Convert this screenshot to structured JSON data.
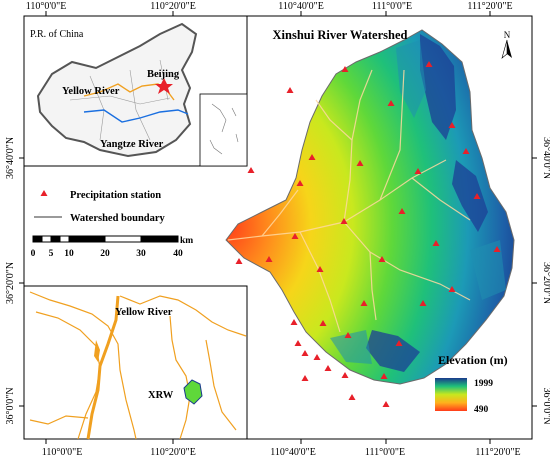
{
  "map": {
    "title": "Xinshui River Watershed",
    "north_arrow": "N",
    "top_longitudes": [
      "110°0'0\"E",
      "110°20'0\"E",
      "110°40'0\"E",
      "111°0'0\"E",
      "111°20'0\"E"
    ],
    "bottom_longitudes": [
      "110°0'0\"E",
      "110°20'0\"E",
      "110°40'0\"E",
      "111°0'0\"E",
      "111°20'0\"E"
    ],
    "left_latitudes": [
      "36°40'0\"N",
      "36°20'0\"N",
      "36°0'0\"N"
    ],
    "right_latitudes": [
      "36°40'0\"N",
      "36°20'0\"N",
      "36°0'0\"N"
    ]
  },
  "inset_china": {
    "label": "P.R. of China",
    "city": "Beijing",
    "river1": "Yellow River",
    "river2": "Yangtze River"
  },
  "legend": {
    "station_label": "Precipitation station",
    "boundary_label": "Watershed boundary",
    "scale_unit": "km",
    "scale_ticks": [
      "0",
      "5",
      "10",
      "20",
      "30",
      "40"
    ]
  },
  "inset_location": {
    "river_label": "Yellow River",
    "watershed_abbr": "XRW"
  },
  "elevation": {
    "title": "Elevation (m)",
    "max": "1999",
    "min": "490"
  },
  "colors": {
    "station": "#e8202a",
    "low_elev": "#ff4a1a",
    "mid_elev": "#f2e400",
    "high_elev": "#1a3a8c",
    "yellow_river_inset": "#f0a020",
    "yangtze": "#1a6fe0"
  }
}
